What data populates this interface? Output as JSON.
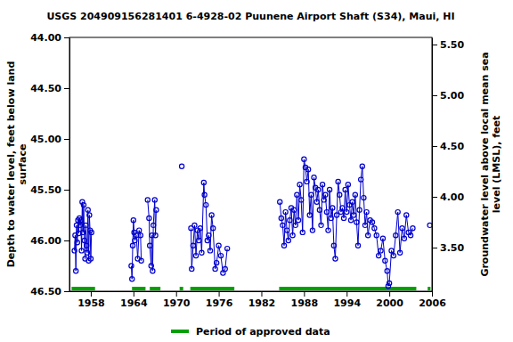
{
  "chart_data": {
    "type": "line",
    "title": "USGS 204909156281401 6-4928-02 Puunene Airport Shaft (S34), Maui, HI",
    "y_label": [
      "Depth to water level, feet below land",
      "surface"
    ],
    "y2_label": [
      "Groundwater level above local mean sea",
      "level (LMSL), feet"
    ],
    "xlim": [
      1955,
      2006
    ],
    "xticks": [
      1958,
      1964,
      1970,
      1976,
      1982,
      1988,
      1994,
      2000,
      2006
    ],
    "ylim": [
      44,
      46.5
    ],
    "yticks": [
      {
        "value": 44,
        "label": "44.00"
      },
      {
        "value": 44.5,
        "label": "44.50"
      },
      {
        "value": 45,
        "label": "45.00"
      },
      {
        "value": 45.5,
        "label": "45.50"
      },
      {
        "value": 46,
        "label": "46.00"
      },
      {
        "value": 46.5,
        "label": "46.50"
      }
    ],
    "y2lim": [
      3.07,
      5.57
    ],
    "y2ticks": [
      {
        "value": 3.5,
        "label": "3.50"
      },
      {
        "value": 4,
        "label": "4.00"
      },
      {
        "value": 4.5,
        "label": "4.50"
      },
      {
        "value": 5,
        "label": "5.00"
      },
      {
        "value": 5.5,
        "label": "5.50"
      }
    ],
    "series": [
      {
        "color": "#0000cc",
        "marker": "circle",
        "x": [
          1955.7,
          1955.8,
          1955.9,
          1956.0,
          1956.1,
          1956.2,
          1956.3,
          1956.4,
          1956.5,
          1956.6,
          1956.7,
          1956.8,
          1956.9,
          1957.0,
          1957.1,
          1957.2,
          1957.3,
          1957.4,
          1957.5,
          1957.6,
          1957.7,
          1957.8,
          1957.9,
          1958.0,
          1958.1,
          1961,
          1963.7,
          1963.8,
          1963.9,
          1964.0,
          1964.1,
          1964.2,
          1964.4,
          1964.6,
          1964.8,
          1965.0,
          1965.1,
          1965.5,
          1966.0,
          1966.2,
          1966.3,
          1966.5,
          1966.6,
          1966.7,
          1966.8,
          1967.0,
          1967.1,
          1967.2,
          1969,
          1970.8,
          1971.5,
          1972.1,
          1972.2,
          1972.4,
          1972.6,
          1972.8,
          1973.0,
          1973.2,
          1973.4,
          1973.6,
          1973.9,
          1974.0,
          1974.2,
          1974.4,
          1974.6,
          1974.8,
          1975.0,
          1975.2,
          1975.5,
          1975.7,
          1976.0,
          1976.3,
          1976.6,
          1976.9,
          1977.2,
          1980,
          1984.6,
          1984.8,
          1985.0,
          1985.2,
          1985.4,
          1985.6,
          1985.8,
          1986.0,
          1986.2,
          1986.4,
          1986.6,
          1986.8,
          1987.0,
          1987.2,
          1987.4,
          1987.6,
          1987.8,
          1988.0,
          1988.2,
          1988.4,
          1988.6,
          1988.8,
          1989.0,
          1989.2,
          1989.4,
          1989.6,
          1989.8,
          1990.0,
          1990.2,
          1990.4,
          1990.6,
          1990.8,
          1991.0,
          1991.2,
          1991.4,
          1991.6,
          1991.8,
          1992.0,
          1992.2,
          1992.4,
          1992.6,
          1992.8,
          1993.0,
          1993.2,
          1993.4,
          1993.6,
          1993.8,
          1994.0,
          1994.2,
          1994.4,
          1994.6,
          1994.8,
          1995.0,
          1995.2,
          1995.4,
          1995.6,
          1995.8,
          1996.0,
          1996.2,
          1996.4,
          1996.6,
          1996.8,
          1997.0,
          1997.3,
          1997.6,
          1997.9,
          1998.2,
          1998.5,
          1998.8,
          1999.1,
          1999.4,
          1999.7,
          1999.85,
          2000.0,
          2000.3,
          2000.6,
          2000.9,
          2001.2,
          2001.5,
          2001.8,
          2002.1,
          2002.4,
          2002.7,
          2003.0,
          2003.3,
          2004.5,
          2005.7
        ],
        "values": [
          46.1,
          45.95,
          46.3,
          45.85,
          46.02,
          45.8,
          45.93,
          45.78,
          45.85,
          45.8,
          46.1,
          45.62,
          45.92,
          45.65,
          46.0,
          46.18,
          45.85,
          46.05,
          46.12,
          45.7,
          46.2,
          45.75,
          45.9,
          46.18,
          45.92,
          null,
          46.25,
          46.38,
          46.05,
          45.8,
          45.92,
          46.0,
          45.95,
          46.18,
          45.9,
          45.95,
          46.2,
          null,
          45.6,
          45.78,
          46.05,
          46.25,
          45.95,
          46.3,
          45.85,
          45.6,
          45.95,
          45.7,
          null,
          45.27,
          null,
          45.88,
          46.28,
          46.05,
          45.85,
          46.15,
          45.9,
          46.0,
          45.88,
          46.12,
          45.43,
          45.55,
          45.65,
          46.0,
          45.95,
          46.1,
          45.75,
          45.88,
          46.28,
          46.22,
          46.05,
          46.15,
          46.32,
          46.28,
          46.08,
          null,
          45.62,
          45.78,
          45.85,
          46.05,
          45.72,
          45.9,
          46.0,
          45.8,
          45.68,
          45.95,
          45.7,
          45.85,
          45.55,
          45.8,
          45.45,
          45.6,
          45.92,
          45.2,
          45.28,
          45.42,
          45.3,
          45.75,
          45.55,
          45.9,
          45.38,
          45.48,
          45.62,
          45.5,
          45.7,
          45.85,
          45.45,
          45.6,
          45.55,
          45.72,
          45.9,
          45.5,
          45.78,
          45.68,
          46.05,
          46.18,
          45.75,
          45.42,
          45.55,
          45.72,
          45.68,
          45.78,
          45.5,
          45.72,
          45.45,
          45.65,
          45.8,
          45.62,
          45.75,
          45.55,
          45.82,
          46.05,
          45.7,
          45.4,
          45.27,
          45.58,
          45.85,
          45.72,
          45.95,
          45.8,
          45.82,
          45.88,
          45.95,
          46.15,
          46.1,
          45.98,
          46.2,
          46.3,
          46.45,
          46.42,
          46.1,
          46.15,
          45.95,
          45.72,
          46.12,
          45.88,
          45.98,
          45.75,
          45.92,
          45.95,
          45.88,
          null,
          45.85
        ]
      }
    ],
    "periods": {
      "name": "Period of approved data",
      "color": "#00a000",
      "start": [
        1955.3,
        1963.8,
        1966.3,
        1970.5,
        1972.0,
        1984.5,
        2005.4
      ],
      "end": [
        1958.6,
        1965.7,
        1967.8,
        1971.0,
        1978.2,
        2003.8,
        2005.8
      ]
    }
  }
}
